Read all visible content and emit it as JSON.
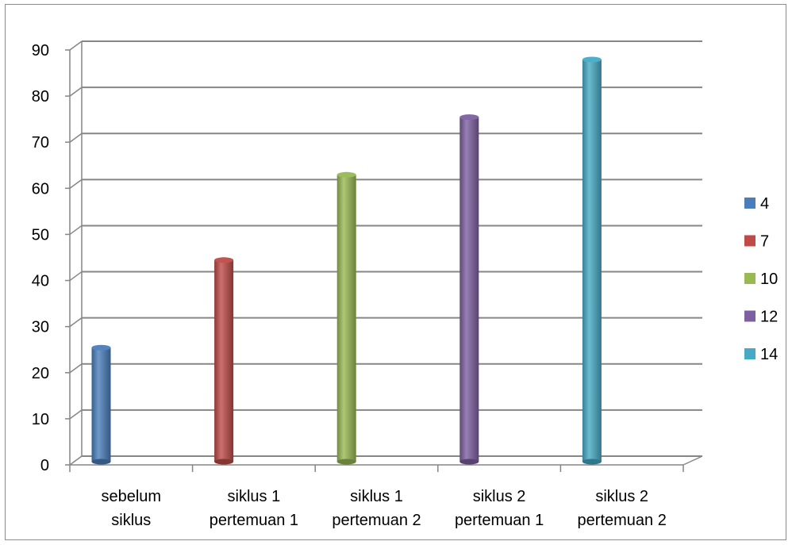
{
  "chart_data": {
    "type": "bar",
    "style": "3d-cylinder",
    "categories": [
      [
        "sebelum",
        "siklus"
      ],
      [
        "siklus 1",
        "pertemuan 1"
      ],
      [
        "siklus 1",
        "pertemuan 2"
      ],
      [
        "siklus 2",
        "pertemuan 1"
      ],
      [
        "siklus 2",
        "pertemuan 2"
      ]
    ],
    "series": [
      {
        "name": "4",
        "category_index": 0,
        "value": 25,
        "color": "#4a7ebb"
      },
      {
        "name": "7",
        "category_index": 1,
        "value": 44,
        "color": "#be4b48"
      },
      {
        "name": "10",
        "category_index": 2,
        "value": 62.5,
        "color": "#98b954"
      },
      {
        "name": "12",
        "category_index": 3,
        "value": 75,
        "color": "#7d60a0"
      },
      {
        "name": "14",
        "category_index": 4,
        "value": 87.5,
        "color": "#46aac5"
      }
    ],
    "ylim": [
      0,
      90
    ],
    "yticks": [
      "0",
      "10",
      "20",
      "30",
      "40",
      "50",
      "60",
      "70",
      "80",
      "90"
    ],
    "grid": true,
    "legend": "right",
    "title": "",
    "xlabel": "",
    "ylabel": ""
  }
}
